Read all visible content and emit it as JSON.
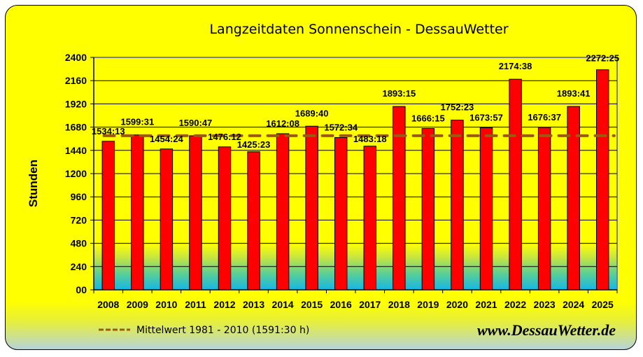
{
  "chart_data": {
    "type": "bar",
    "title": "Langzeitdaten Sonnenschein - DessauWetter",
    "xlabel": "",
    "ylabel": "Stunden",
    "ylim": [
      0,
      2400
    ],
    "yticks": [
      0,
      240,
      480,
      720,
      960,
      1200,
      1440,
      1680,
      1920,
      2160,
      2400
    ],
    "ytick_labels": [
      "00",
      "240",
      "480",
      "720",
      "960",
      "1200",
      "1440",
      "1680",
      "1920",
      "2160",
      "2400"
    ],
    "grid": true,
    "categories": [
      "2008",
      "2009",
      "2010",
      "2011",
      "2012",
      "2013",
      "2014",
      "2015",
      "2016",
      "2017",
      "2018",
      "2019",
      "2020",
      "2021",
      "2022",
      "2023",
      "2024",
      "2025"
    ],
    "values": [
      1534.22,
      1599.52,
      1454.4,
      1590.78,
      1476.2,
      1425.38,
      1612.13,
      1689.67,
      1572.57,
      1483.3,
      1893.25,
      1666.25,
      1752.38,
      1673.95,
      2174.63,
      1676.62,
      1893.68,
      2272.42
    ],
    "data_labels": [
      "1534:13",
      "1599:31",
      "1454:24",
      "1590:47",
      "1476:12",
      "1425:23",
      "1612:08",
      "1689:40",
      "1572:34",
      "1483:18",
      "1893:15",
      "1666:15",
      "1752:23",
      "1673:57",
      "2174:38",
      "1676:37",
      "1893:41",
      "2272:25"
    ],
    "reference_line": {
      "label": "Mittelwert 1981 - 2010 (1591:30 h)",
      "value": 1591.5,
      "style": "dashed"
    },
    "colors": {
      "bar": "#ff0000",
      "bar_outline": "#000000",
      "reference": "#9c5a10",
      "background": "#ffff00",
      "plot_gradient_bottom": "#1ab4e6"
    },
    "footer": "www.DessauWetter.de"
  }
}
